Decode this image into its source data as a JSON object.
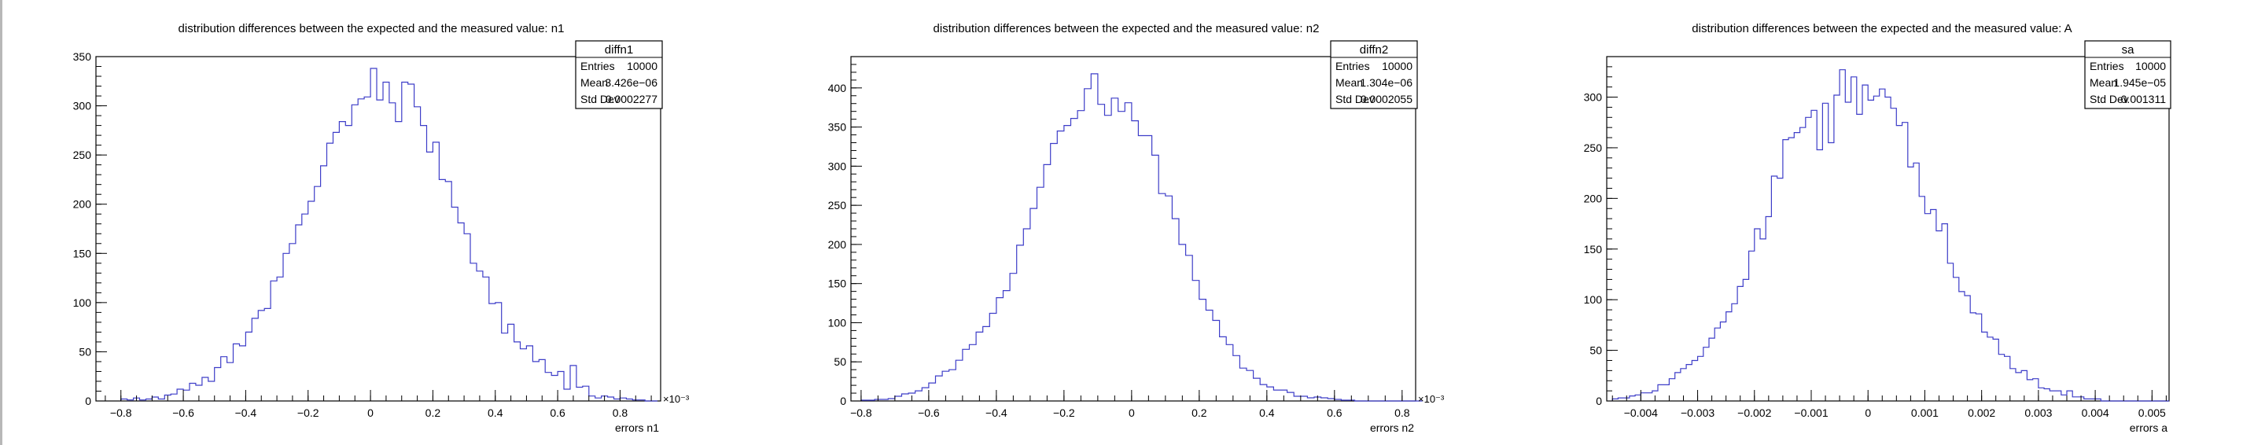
{
  "colors": {
    "histogram": "#3d3dc8",
    "axis": "#000000",
    "background": "#ffffff"
  },
  "chart_data": [
    {
      "type": "bar",
      "title": "distribution differences between the expected and the measured value: n1",
      "xlabel": "errors n1",
      "ylabel": "",
      "x_multiplier": "×10⁻³",
      "xlim": [
        -0.88,
        0.93
      ],
      "ylim": [
        0,
        350
      ],
      "xticks": [
        "−0.8",
        "−0.6",
        "−0.4",
        "−0.2",
        "0",
        "0.2",
        "0.4",
        "0.6",
        "0.8"
      ],
      "xtick_values": [
        -0.8,
        -0.6,
        -0.4,
        -0.2,
        0,
        0.2,
        0.4,
        0.6,
        0.8
      ],
      "yticks": [
        "0",
        "50",
        "100",
        "150",
        "200",
        "250",
        "300",
        "350"
      ],
      "ytick_values": [
        0,
        50,
        100,
        150,
        200,
        250,
        300,
        350
      ],
      "bin_start": -0.8,
      "bin_width": 0.02,
      "values": [
        2,
        1,
        3,
        1,
        2,
        4,
        2,
        6,
        7,
        12,
        11,
        18,
        16,
        24,
        20,
        34,
        45,
        39,
        58,
        56,
        70,
        84,
        92,
        94,
        122,
        126,
        150,
        160,
        179,
        190,
        203,
        218,
        239,
        262,
        273,
        284,
        280,
        301,
        307,
        309,
        338,
        306,
        324,
        303,
        284,
        324,
        322,
        299,
        280,
        253,
        263,
        225,
        223,
        197,
        181,
        170,
        140,
        132,
        126,
        99,
        100,
        69,
        78,
        60,
        53,
        56,
        40,
        42,
        29,
        26,
        30,
        12,
        36,
        14,
        15,
        5,
        3,
        5,
        4,
        2,
        3,
        2,
        1,
        1,
        0,
        0
      ],
      "stats": {
        "name": "diffn1",
        "rows": [
          [
            "Entries",
            "10000"
          ],
          [
            "Mean",
            "3.426e−06"
          ],
          [
            "Std Dev",
            "0.0002277"
          ]
        ]
      }
    },
    {
      "type": "bar",
      "title": "distribution differences between the expected and the measured value: n2",
      "xlabel": "errors n2",
      "ylabel": "",
      "x_multiplier": "×10⁻³",
      "xlim": [
        -0.83,
        0.84
      ],
      "ylim": [
        0,
        440
      ],
      "xticks": [
        "−0.8",
        "−0.6",
        "−0.4",
        "−0.2",
        "0",
        "0.2",
        "0.4",
        "0.6",
        "0.8"
      ],
      "xtick_values": [
        -0.8,
        -0.6,
        -0.4,
        -0.2,
        0,
        0.2,
        0.4,
        0.6,
        0.8
      ],
      "yticks": [
        "0",
        "50",
        "100",
        "150",
        "200",
        "250",
        "300",
        "350",
        "400"
      ],
      "ytick_values": [
        0,
        50,
        100,
        150,
        200,
        250,
        300,
        350,
        400
      ],
      "bin_start": -0.8,
      "bin_width": 0.02,
      "values": [
        1,
        1,
        2,
        2,
        3,
        6,
        9,
        10,
        13,
        17,
        23,
        32,
        38,
        40,
        52,
        66,
        72,
        88,
        95,
        112,
        132,
        141,
        163,
        199,
        220,
        246,
        273,
        302,
        329,
        345,
        352,
        361,
        371,
        399,
        418,
        379,
        365,
        387,
        370,
        381,
        358,
        339,
        339,
        314,
        265,
        262,
        233,
        200,
        186,
        154,
        130,
        116,
        103,
        82,
        72,
        58,
        42,
        39,
        29,
        21,
        18,
        14,
        14,
        11,
        6,
        6,
        4,
        5,
        4,
        3,
        2,
        1,
        1,
        0,
        0,
        0,
        0,
        0,
        0,
        0,
        0,
        0,
        0
      ],
      "stats": {
        "name": "diffn2",
        "rows": [
          [
            "Entries",
            "10000"
          ],
          [
            "Mean",
            "1.304e−06"
          ],
          [
            "Std Dev",
            "0.0002055"
          ]
        ]
      }
    },
    {
      "type": "bar",
      "title": "distribution differences between the expected and the measured value: A",
      "xlabel": "errors a",
      "ylabel": "",
      "x_multiplier": "",
      "xlim": [
        -0.0046,
        0.0053
      ],
      "ylim": [
        0,
        340
      ],
      "xticks": [
        "−0.004",
        "−0.003",
        "−0.002",
        "−0.001",
        "0",
        "0.001",
        "0.002",
        "0.003",
        "0.004",
        "0.005"
      ],
      "xtick_values": [
        -0.004,
        -0.003,
        -0.002,
        -0.001,
        0,
        0.001,
        0.002,
        0.003,
        0.004,
        0.005
      ],
      "yticks": [
        "0",
        "50",
        "100",
        "150",
        "200",
        "250",
        "300"
      ],
      "ytick_values": [
        0,
        50,
        100,
        150,
        200,
        250,
        300
      ],
      "bin_start": -0.0045,
      "bin_width": 0.0001,
      "values": [
        2,
        3,
        3,
        5,
        6,
        8,
        8,
        10,
        16,
        16,
        22,
        28,
        32,
        36,
        40,
        44,
        53,
        62,
        72,
        78,
        88,
        96,
        113,
        120,
        148,
        170,
        160,
        182,
        222,
        220,
        258,
        260,
        265,
        270,
        280,
        287,
        248,
        294,
        255,
        302,
        327,
        295,
        320,
        283,
        312,
        297,
        301,
        308,
        300,
        289,
        272,
        275,
        231,
        235,
        202,
        185,
        189,
        168,
        175,
        136,
        122,
        108,
        104,
        87,
        86,
        68,
        63,
        61,
        46,
        44,
        32,
        28,
        30,
        21,
        22,
        13,
        12,
        10,
        10,
        6,
        10,
        4,
        4,
        2,
        2,
        2,
        0,
        0,
        0,
        0,
        0,
        0,
        0,
        0,
        0,
        0,
        0,
        0
      ],
      "stats": {
        "name": "sa",
        "rows": [
          [
            "Entries",
            "10000"
          ],
          [
            "Mean",
            "1.945e−05"
          ],
          [
            "Std Dev",
            "0.001311"
          ]
        ]
      }
    }
  ]
}
